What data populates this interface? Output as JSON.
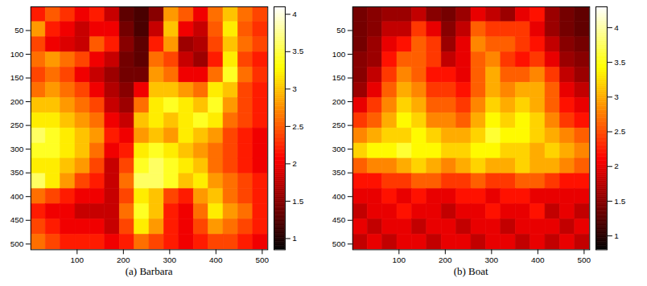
{
  "chart_data": [
    {
      "type": "heatmap",
      "title": "(a) Barbara",
      "color": "hot",
      "xlim": [
        0,
        512
      ],
      "ylim": [
        512,
        0
      ],
      "xticks": [
        100,
        200,
        300,
        400,
        500
      ],
      "yticks": [
        50,
        100,
        150,
        200,
        250,
        300,
        350,
        400,
        450,
        500
      ],
      "x": [
        16,
        48,
        80,
        112,
        144,
        176,
        208,
        240,
        272,
        304,
        336,
        368,
        400,
        432,
        464,
        496
      ],
      "y": [
        16,
        48,
        80,
        112,
        144,
        176,
        208,
        240,
        272,
        304,
        336,
        368,
        400,
        432,
        464,
        496
      ],
      "z": [
        [
          2.2,
          2.5,
          2.3,
          2.0,
          2.2,
          1.8,
          1.3,
          1.2,
          1.5,
          2.8,
          2.5,
          2.0,
          2.6,
          3.0,
          2.6,
          2.4
        ],
        [
          2.8,
          2.2,
          2.0,
          1.8,
          2.0,
          2.0,
          1.4,
          1.2,
          1.8,
          3.0,
          2.0,
          1.8,
          2.5,
          3.2,
          2.5,
          2.3
        ],
        [
          2.4,
          2.0,
          1.9,
          1.8,
          2.5,
          2.2,
          1.5,
          1.3,
          2.2,
          2.8,
          1.6,
          1.7,
          2.4,
          3.0,
          2.6,
          2.4
        ],
        [
          2.6,
          2.8,
          2.6,
          2.4,
          2.0,
          1.8,
          1.4,
          1.3,
          2.6,
          2.4,
          1.8,
          1.6,
          2.2,
          3.2,
          2.4,
          2.2
        ],
        [
          2.4,
          2.6,
          2.4,
          2.0,
          1.8,
          1.6,
          1.4,
          1.4,
          2.8,
          2.6,
          2.0,
          2.0,
          2.6,
          3.4,
          2.6,
          2.3
        ],
        [
          2.6,
          2.8,
          2.6,
          2.4,
          2.0,
          1.7,
          1.5,
          2.0,
          3.0,
          3.0,
          2.8,
          2.6,
          3.2,
          3.0,
          2.4,
          2.2
        ],
        [
          3.0,
          3.0,
          2.8,
          2.6,
          2.4,
          1.8,
          1.6,
          2.6,
          3.2,
          3.4,
          3.2,
          3.0,
          3.4,
          2.8,
          2.4,
          2.2
        ],
        [
          3.2,
          3.2,
          3.0,
          2.8,
          2.6,
          2.0,
          1.8,
          3.0,
          3.2,
          3.0,
          3.2,
          3.4,
          3.2,
          2.6,
          2.4,
          2.2
        ],
        [
          3.6,
          3.4,
          3.2,
          3.0,
          2.8,
          2.2,
          2.0,
          2.8,
          3.0,
          2.8,
          3.2,
          3.0,
          2.8,
          2.4,
          2.2,
          2.0
        ],
        [
          3.4,
          3.4,
          3.2,
          3.0,
          2.6,
          2.0,
          2.2,
          3.2,
          3.4,
          3.2,
          3.0,
          2.8,
          2.6,
          2.4,
          2.2,
          2.0
        ],
        [
          3.2,
          3.2,
          3.0,
          2.8,
          2.4,
          1.8,
          2.4,
          3.4,
          3.6,
          3.4,
          3.2,
          3.0,
          2.6,
          2.4,
          2.2,
          2.0
        ],
        [
          3.6,
          3.2,
          2.8,
          2.4,
          2.2,
          1.8,
          2.6,
          3.6,
          3.6,
          3.4,
          3.0,
          3.2,
          2.8,
          2.6,
          2.4,
          2.2
        ],
        [
          2.6,
          2.4,
          2.2,
          2.0,
          2.0,
          1.8,
          2.4,
          3.2,
          3.0,
          2.4,
          2.2,
          2.8,
          3.0,
          2.6,
          2.4,
          2.2
        ],
        [
          2.2,
          2.0,
          2.0,
          1.8,
          1.8,
          1.8,
          2.6,
          3.4,
          3.0,
          2.2,
          2.0,
          2.6,
          3.2,
          2.8,
          2.6,
          2.2
        ],
        [
          2.4,
          2.2,
          2.0,
          2.0,
          2.0,
          1.8,
          2.4,
          3.2,
          2.8,
          2.2,
          2.0,
          2.4,
          2.8,
          2.6,
          2.4,
          2.2
        ],
        [
          2.6,
          2.4,
          2.2,
          2.2,
          2.2,
          2.0,
          2.2,
          2.6,
          2.4,
          2.2,
          2.0,
          2.2,
          2.4,
          2.4,
          2.2,
          2.0
        ]
      ],
      "zlim": [
        0.85,
        4.1
      ],
      "zticks": [
        1,
        1.5,
        2,
        2.5,
        3,
        3.5,
        4
      ]
    },
    {
      "type": "heatmap",
      "title": "(b) Boat",
      "color": "hot",
      "xlim": [
        0,
        512
      ],
      "ylim": [
        512,
        0
      ],
      "xticks": [
        100,
        200,
        300,
        400,
        500
      ],
      "yticks": [
        50,
        100,
        150,
        200,
        250,
        300,
        350,
        400,
        450,
        500
      ],
      "x": [
        16,
        48,
        80,
        112,
        144,
        176,
        208,
        240,
        272,
        304,
        336,
        368,
        400,
        432,
        464,
        496
      ],
      "y": [
        16,
        48,
        80,
        112,
        144,
        176,
        208,
        240,
        272,
        304,
        336,
        368,
        400,
        432,
        464,
        496
      ],
      "z": [
        [
          1.4,
          1.5,
          1.6,
          1.6,
          1.8,
          1.5,
          1.4,
          1.6,
          2.0,
          1.8,
          1.6,
          2.0,
          2.2,
          1.6,
          1.4,
          1.3
        ],
        [
          1.4,
          1.5,
          1.8,
          1.8,
          2.4,
          2.0,
          1.5,
          1.8,
          2.6,
          2.4,
          2.4,
          2.4,
          2.0,
          1.6,
          1.4,
          1.3
        ],
        [
          1.4,
          1.6,
          2.0,
          2.2,
          2.6,
          2.4,
          1.6,
          2.0,
          2.8,
          2.6,
          2.6,
          2.4,
          2.2,
          1.8,
          1.5,
          1.4
        ],
        [
          1.5,
          1.6,
          2.2,
          2.6,
          2.6,
          2.4,
          1.8,
          2.0,
          2.6,
          2.8,
          2.4,
          2.2,
          2.4,
          2.0,
          1.6,
          1.5
        ],
        [
          1.5,
          1.8,
          2.4,
          2.8,
          2.6,
          2.2,
          2.2,
          2.0,
          2.6,
          3.0,
          2.6,
          2.6,
          2.8,
          2.4,
          1.8,
          1.6
        ],
        [
          1.6,
          2.0,
          2.6,
          3.0,
          2.8,
          2.4,
          2.4,
          2.2,
          2.6,
          3.0,
          2.8,
          3.0,
          3.0,
          2.6,
          2.0,
          1.8
        ],
        [
          2.0,
          2.4,
          2.8,
          3.2,
          3.0,
          2.6,
          2.6,
          2.4,
          2.8,
          3.2,
          3.0,
          3.2,
          3.0,
          2.6,
          2.2,
          2.0
        ],
        [
          2.4,
          2.6,
          3.0,
          3.4,
          3.2,
          2.8,
          2.8,
          2.6,
          3.0,
          3.4,
          3.2,
          3.4,
          3.2,
          2.8,
          2.4,
          2.2
        ],
        [
          2.8,
          3.0,
          3.2,
          3.2,
          3.4,
          3.2,
          3.0,
          3.0,
          3.2,
          3.6,
          3.4,
          3.4,
          3.2,
          3.0,
          2.8,
          2.6
        ],
        [
          3.2,
          3.4,
          3.4,
          3.6,
          3.4,
          3.4,
          3.2,
          3.2,
          3.4,
          3.4,
          3.2,
          3.2,
          3.0,
          3.2,
          3.0,
          2.8
        ],
        [
          2.6,
          2.8,
          2.8,
          3.0,
          3.2,
          3.0,
          2.8,
          3.0,
          3.2,
          3.0,
          3.0,
          3.2,
          3.0,
          3.0,
          2.8,
          2.6
        ],
        [
          2.2,
          2.2,
          2.4,
          2.4,
          2.6,
          2.6,
          2.4,
          2.4,
          2.6,
          2.4,
          2.4,
          2.6,
          2.6,
          2.4,
          2.2,
          2.2
        ],
        [
          2.0,
          2.0,
          2.2,
          2.0,
          2.2,
          2.0,
          2.0,
          2.2,
          2.2,
          2.0,
          2.2,
          2.2,
          2.0,
          2.0,
          2.0,
          2.0
        ],
        [
          1.8,
          2.0,
          2.0,
          2.2,
          2.0,
          2.0,
          1.8,
          2.0,
          2.0,
          2.2,
          2.0,
          2.0,
          2.2,
          1.8,
          2.0,
          1.8
        ],
        [
          2.0,
          1.8,
          2.0,
          2.0,
          1.8,
          2.0,
          2.0,
          1.8,
          2.0,
          2.0,
          1.8,
          2.0,
          2.0,
          2.0,
          1.8,
          2.0
        ],
        [
          1.8,
          2.0,
          1.8,
          2.0,
          2.0,
          1.8,
          2.0,
          2.0,
          1.8,
          2.0,
          2.0,
          1.8,
          2.0,
          1.8,
          2.0,
          1.8
        ]
      ],
      "zlim": [
        0.8,
        4.3
      ],
      "zticks": [
        1,
        1.5,
        2,
        2.5,
        3,
        3.5,
        4
      ]
    }
  ]
}
